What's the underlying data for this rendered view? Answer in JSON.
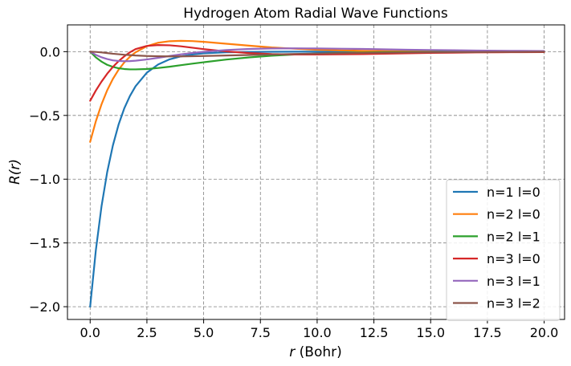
{
  "chart_data": {
    "type": "line",
    "title": "Hydrogen Atom Radial Wave Functions",
    "xlabel": "r (Bohr)",
    "xlabel_var": "r",
    "xlabel_unit": " (Bohr)",
    "ylabel": "R(r)",
    "xlim": [
      -1,
      20.9
    ],
    "ylim": [
      -2.1,
      0.21
    ],
    "xticks": [
      0,
      2.5,
      5,
      7.5,
      10,
      12.5,
      15,
      17.5,
      20
    ],
    "xtick_labels": [
      "0.0",
      "2.5",
      "5.0",
      "7.5",
      "10.0",
      "12.5",
      "15.0",
      "17.5",
      "20.0"
    ],
    "yticks": [
      0.0,
      -0.5,
      -1.0,
      -1.5,
      -2.0
    ],
    "ytick_labels": [
      "0.0",
      "−0.5",
      "−1.0",
      "−1.5",
      "−2.0"
    ],
    "grid": true,
    "legend_position": "bottom-right",
    "x": [
      0,
      0.25,
      0.5,
      0.75,
      1,
      1.25,
      1.5,
      1.75,
      2,
      2.5,
      3,
      3.5,
      4,
      4.5,
      5,
      6,
      7,
      8,
      9,
      10,
      11,
      12,
      13,
      14,
      15,
      16,
      17,
      18,
      19,
      20
    ],
    "series": [
      {
        "name": "n=1 l=0",
        "color": "#1f77b4",
        "values": [
          -2.0,
          -1.558,
          -1.213,
          -0.945,
          -0.736,
          -0.573,
          -0.446,
          -0.348,
          -0.271,
          -0.164,
          -0.1,
          -0.06,
          -0.037,
          -0.022,
          -0.013,
          -0.005,
          -0.002,
          -0.001,
          0,
          0,
          0,
          0,
          0,
          0,
          0,
          0,
          0,
          0,
          0,
          0
        ]
      },
      {
        "name": "n=2 l=0",
        "color": "#ff7f0e",
        "values": [
          -0.707,
          -0.546,
          -0.413,
          -0.303,
          -0.214,
          -0.142,
          -0.085,
          -0.04,
          -0.005,
          0.043,
          0.07,
          0.082,
          0.085,
          0.083,
          0.077,
          0.062,
          0.047,
          0.033,
          0.023,
          0.015,
          0.01,
          0.006,
          0.004,
          0.003,
          0.002,
          0.001,
          0.001,
          0,
          0,
          0
        ]
      },
      {
        "name": "n=2 l=1",
        "color": "#2ca02c",
        "values": [
          0,
          -0.045,
          -0.078,
          -0.103,
          -0.119,
          -0.13,
          -0.136,
          -0.139,
          -0.139,
          -0.136,
          -0.128,
          -0.118,
          -0.106,
          -0.094,
          -0.083,
          -0.062,
          -0.045,
          -0.032,
          -0.022,
          -0.015,
          -0.01,
          -0.007,
          -0.004,
          -0.003,
          -0.002,
          -0.001,
          -0.001,
          0,
          0,
          0
        ]
      },
      {
        "name": "n=3 l=0",
        "color": "#d62728",
        "values": [
          -0.385,
          -0.305,
          -0.235,
          -0.173,
          -0.12,
          -0.075,
          -0.037,
          -0.005,
          0.02,
          0.045,
          0.052,
          0.05,
          0.042,
          0.031,
          0.02,
          0.002,
          -0.011,
          -0.019,
          -0.022,
          -0.022,
          -0.021,
          -0.019,
          -0.016,
          -0.013,
          -0.01,
          -0.008,
          -0.006,
          -0.005,
          -0.004,
          -0.003
        ]
      },
      {
        "name": "n=3 l=1",
        "color": "#9467bd",
        "values": [
          0,
          -0.025,
          -0.044,
          -0.058,
          -0.068,
          -0.073,
          -0.075,
          -0.074,
          -0.071,
          -0.061,
          -0.048,
          -0.034,
          -0.021,
          -0.01,
          -0.001,
          0.013,
          0.021,
          0.025,
          0.026,
          0.025,
          0.023,
          0.021,
          0.018,
          0.015,
          0.013,
          0.011,
          0.009,
          0.007,
          0.006,
          0.005
        ]
      },
      {
        "name": "n=3 l=2",
        "color": "#8c564b",
        "values": [
          0,
          -0.002,
          -0.006,
          -0.011,
          -0.016,
          -0.02,
          -0.024,
          -0.027,
          -0.03,
          -0.034,
          -0.036,
          -0.037,
          -0.037,
          -0.036,
          -0.034,
          -0.03,
          -0.026,
          -0.022,
          -0.018,
          -0.015,
          -0.012,
          -0.01,
          -0.008,
          -0.006,
          -0.005,
          -0.004,
          -0.003,
          -0.002,
          -0.002,
          -0.001
        ]
      }
    ]
  }
}
